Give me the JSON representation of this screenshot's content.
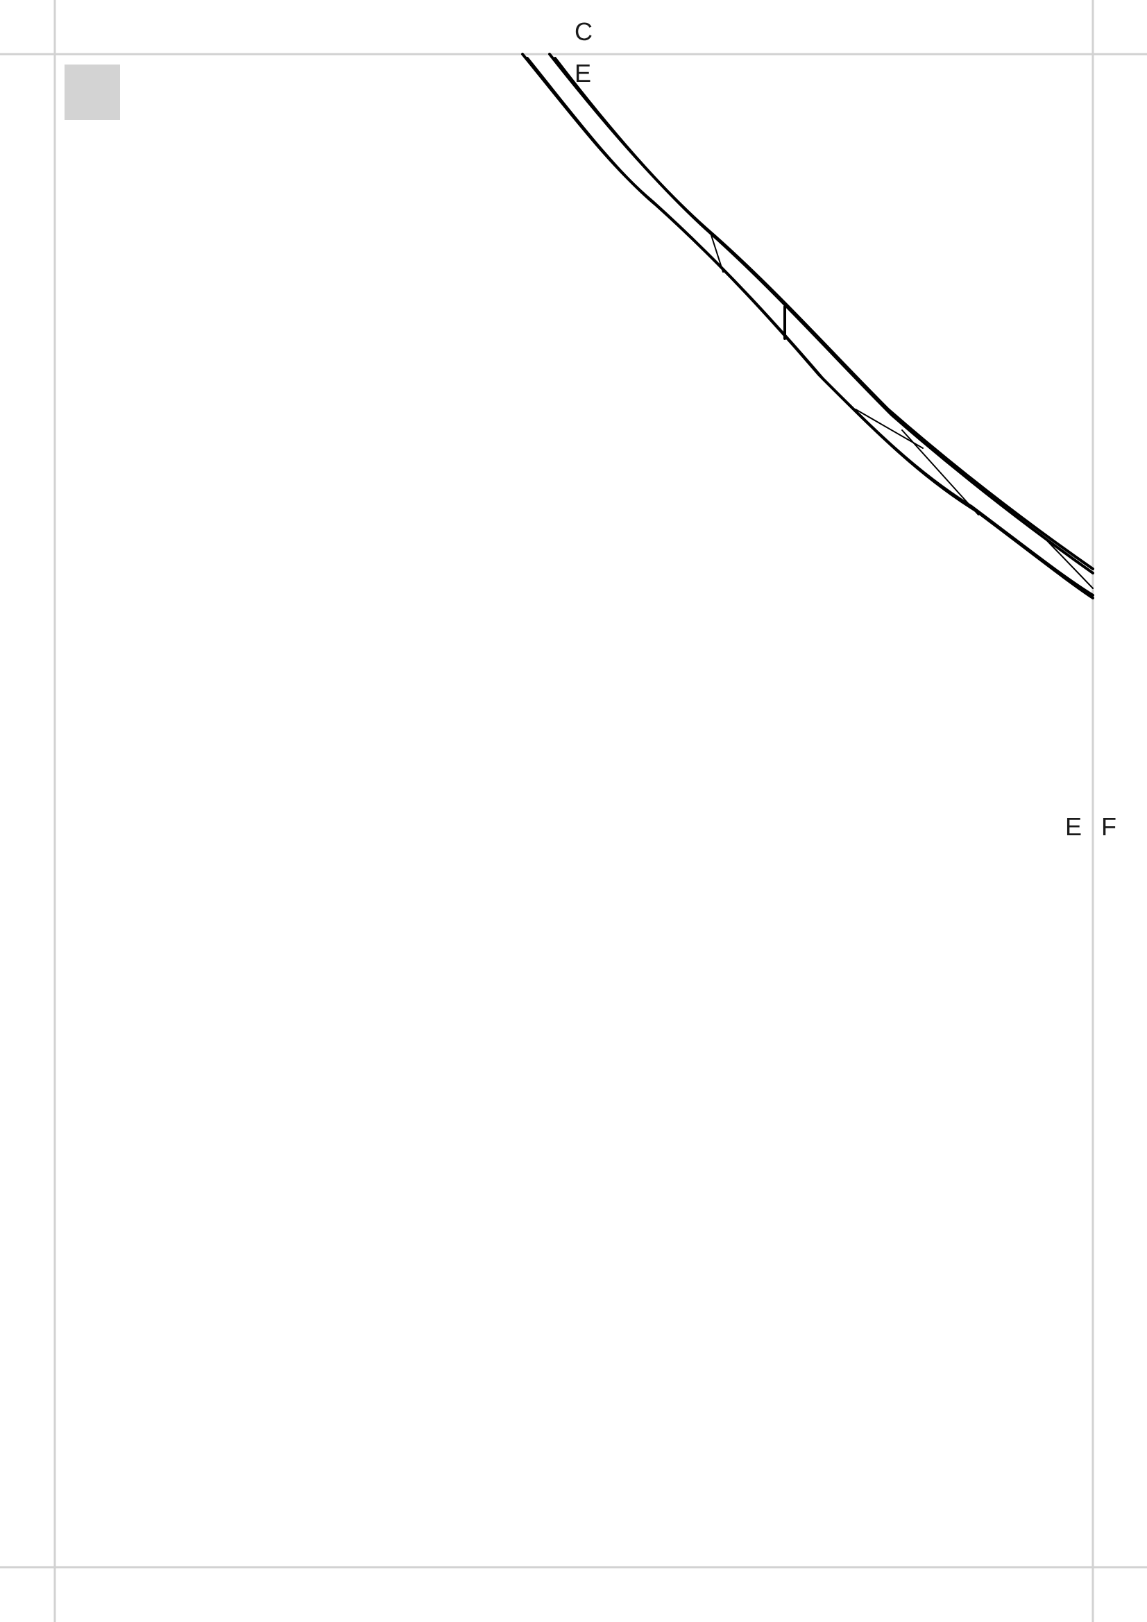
{
  "labels": {
    "top_c": "C",
    "top_e": "E",
    "right_e": "E",
    "right_f": "F"
  },
  "colors": {
    "guide": "#d2d2d2",
    "marker": "#d3d3d3",
    "line": "#000000",
    "background": "#ffffff"
  }
}
